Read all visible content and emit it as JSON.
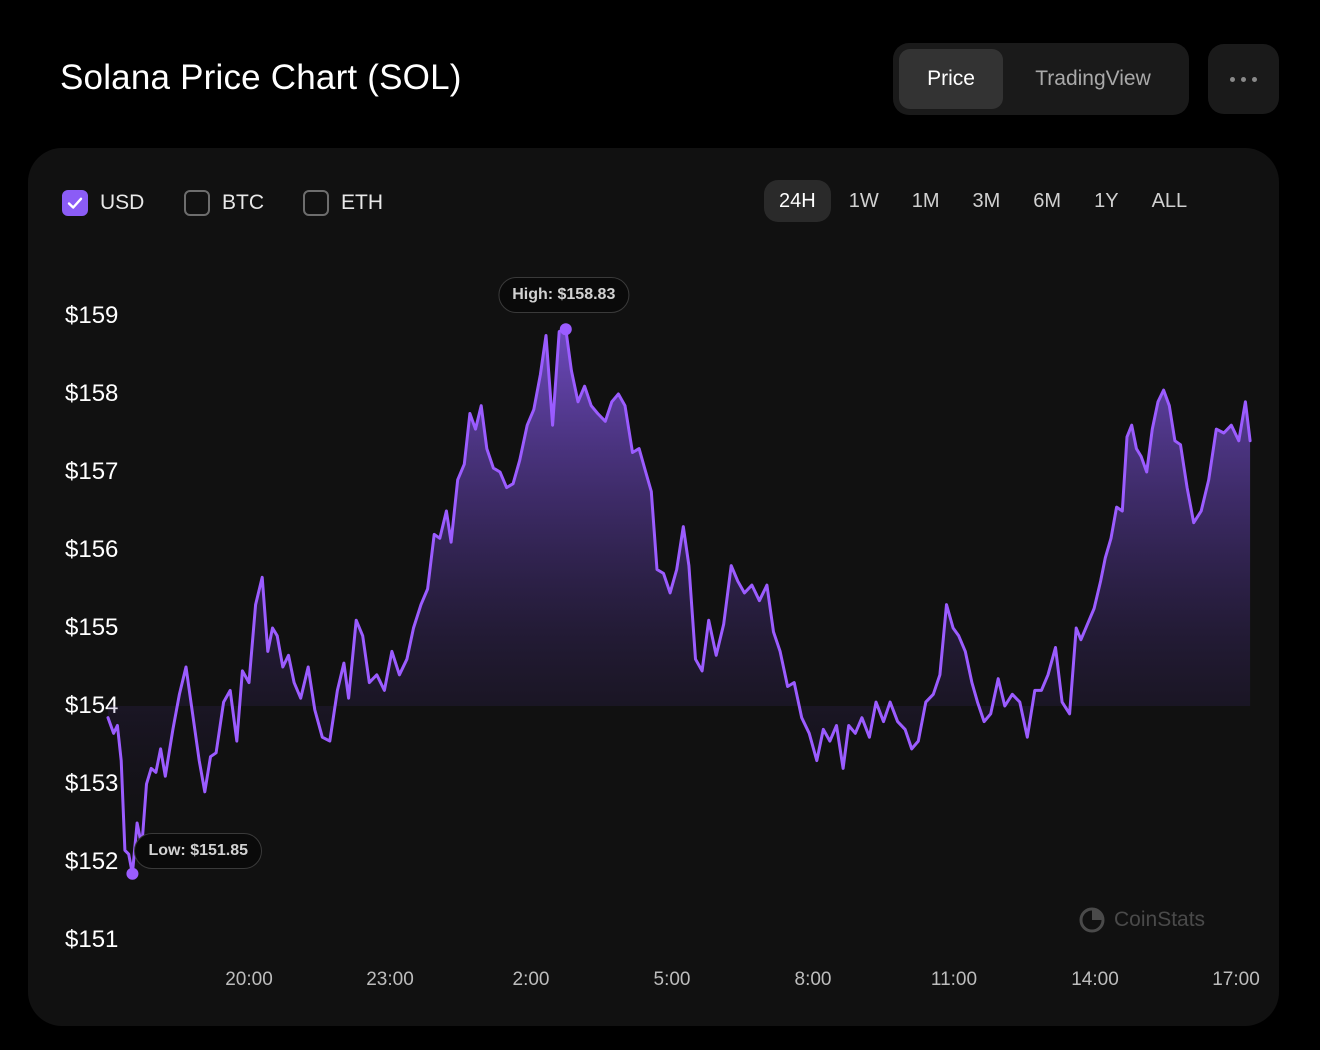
{
  "header": {
    "title": "Solana Price Chart (SOL)",
    "tabs": [
      {
        "label": "Price",
        "active": true
      },
      {
        "label": "TradingView",
        "active": false
      }
    ],
    "more_icon": "more-horizontal-icon"
  },
  "currencies": [
    {
      "label": "USD",
      "checked": true
    },
    {
      "label": "BTC",
      "checked": false
    },
    {
      "label": "ETH",
      "checked": false
    }
  ],
  "ranges": [
    {
      "label": "24H",
      "active": true
    },
    {
      "label": "1W",
      "active": false
    },
    {
      "label": "1M",
      "active": false
    },
    {
      "label": "3M",
      "active": false
    },
    {
      "label": "6M",
      "active": false
    },
    {
      "label": "1Y",
      "active": false
    },
    {
      "label": "ALL",
      "active": false
    }
  ],
  "chart_data": {
    "type": "area",
    "title": "",
    "xlabel": "",
    "ylabel": "",
    "ylim": [
      151,
      159
    ],
    "y_ticks": [
      {
        "value": 159,
        "label": "$159"
      },
      {
        "value": 158,
        "label": "$158"
      },
      {
        "value": 157,
        "label": "$157"
      },
      {
        "value": 156,
        "label": "$156"
      },
      {
        "value": 155,
        "label": "$155"
      },
      {
        "value": 154,
        "label": "$154"
      },
      {
        "value": 153,
        "label": "$153"
      },
      {
        "value": 152,
        "label": "$152"
      },
      {
        "value": 151,
        "label": "$151"
      }
    ],
    "xlim": [
      18.8,
      17.2
    ],
    "x_unit": "hours",
    "x_ticks": [
      {
        "value": 20,
        "label": "20:00"
      },
      {
        "value": 23,
        "label": "23:00"
      },
      {
        "value": 26,
        "label": "2:00"
      },
      {
        "value": 29,
        "label": "5:00"
      },
      {
        "value": 32,
        "label": "8:00"
      },
      {
        "value": 35,
        "label": "11:00"
      },
      {
        "value": 38,
        "label": "14:00"
      },
      {
        "value": 41,
        "label": "17:00"
      }
    ],
    "series": [
      {
        "color": "#9b5cff",
        "points": [
          [
            17.0,
            153.85
          ],
          [
            17.12,
            153.65
          ],
          [
            17.2,
            153.75
          ],
          [
            17.28,
            153.3
          ],
          [
            17.36,
            152.15
          ],
          [
            17.44,
            152.1
          ],
          [
            17.52,
            151.85
          ],
          [
            17.62,
            152.5
          ],
          [
            17.72,
            152.2
          ],
          [
            17.82,
            153.0
          ],
          [
            17.92,
            153.2
          ],
          [
            18.02,
            153.15
          ],
          [
            18.12,
            153.45
          ],
          [
            18.22,
            153.1
          ],
          [
            18.38,
            153.7
          ],
          [
            18.52,
            154.15
          ],
          [
            18.66,
            154.5
          ],
          [
            18.8,
            153.9
          ],
          [
            18.94,
            153.3
          ],
          [
            19.06,
            152.9
          ],
          [
            19.18,
            153.35
          ],
          [
            19.3,
            153.4
          ],
          [
            19.46,
            154.05
          ],
          [
            19.6,
            154.2
          ],
          [
            19.74,
            153.55
          ],
          [
            19.86,
            154.45
          ],
          [
            20.0,
            154.3
          ],
          [
            20.14,
            155.3
          ],
          [
            20.28,
            155.65
          ],
          [
            20.4,
            154.7
          ],
          [
            20.5,
            155.0
          ],
          [
            20.6,
            154.9
          ],
          [
            20.72,
            154.5
          ],
          [
            20.84,
            154.65
          ],
          [
            20.96,
            154.3
          ],
          [
            21.1,
            154.1
          ],
          [
            21.26,
            154.5
          ],
          [
            21.4,
            153.95
          ],
          [
            21.56,
            153.6
          ],
          [
            21.72,
            153.55
          ],
          [
            21.88,
            154.2
          ],
          [
            22.02,
            154.55
          ],
          [
            22.12,
            154.1
          ],
          [
            22.28,
            155.1
          ],
          [
            22.42,
            154.9
          ],
          [
            22.56,
            154.3
          ],
          [
            22.72,
            154.4
          ],
          [
            22.88,
            154.2
          ],
          [
            23.04,
            154.7
          ],
          [
            23.2,
            154.4
          ],
          [
            23.36,
            154.6
          ],
          [
            23.5,
            155.0
          ],
          [
            23.66,
            155.3
          ],
          [
            23.8,
            155.5
          ],
          [
            23.94,
            156.2
          ],
          [
            24.06,
            156.15
          ],
          [
            24.2,
            156.5
          ],
          [
            24.3,
            156.1
          ],
          [
            24.44,
            156.9
          ],
          [
            24.58,
            157.1
          ],
          [
            24.7,
            157.75
          ],
          [
            24.82,
            157.55
          ],
          [
            24.94,
            157.85
          ],
          [
            25.06,
            157.3
          ],
          [
            25.2,
            157.05
          ],
          [
            25.34,
            157.0
          ],
          [
            25.48,
            156.8
          ],
          [
            25.62,
            156.85
          ],
          [
            25.76,
            157.15
          ],
          [
            25.92,
            157.6
          ],
          [
            26.06,
            157.8
          ],
          [
            26.2,
            158.25
          ],
          [
            26.32,
            158.75
          ],
          [
            26.46,
            157.6
          ],
          [
            26.6,
            158.8
          ],
          [
            26.74,
            158.83
          ],
          [
            26.86,
            158.3
          ],
          [
            27.0,
            157.9
          ],
          [
            27.14,
            158.1
          ],
          [
            27.28,
            157.85
          ],
          [
            27.42,
            157.75
          ],
          [
            27.58,
            157.65
          ],
          [
            27.72,
            157.9
          ],
          [
            27.86,
            158.0
          ],
          [
            28.0,
            157.85
          ],
          [
            28.16,
            157.25
          ],
          [
            28.3,
            157.3
          ],
          [
            28.44,
            157.0
          ],
          [
            28.56,
            156.75
          ],
          [
            28.68,
            155.75
          ],
          [
            28.82,
            155.7
          ],
          [
            28.96,
            155.45
          ],
          [
            29.1,
            155.75
          ],
          [
            29.24,
            156.3
          ],
          [
            29.36,
            155.8
          ],
          [
            29.5,
            154.6
          ],
          [
            29.64,
            154.45
          ],
          [
            29.78,
            155.1
          ],
          [
            29.94,
            154.65
          ],
          [
            30.1,
            155.05
          ],
          [
            30.26,
            155.8
          ],
          [
            30.4,
            155.6
          ],
          [
            30.54,
            155.45
          ],
          [
            30.7,
            155.55
          ],
          [
            30.86,
            155.35
          ],
          [
            31.02,
            155.55
          ],
          [
            31.16,
            154.95
          ],
          [
            31.3,
            154.7
          ],
          [
            31.46,
            154.25
          ],
          [
            31.6,
            154.3
          ],
          [
            31.76,
            153.85
          ],
          [
            31.92,
            153.65
          ],
          [
            32.08,
            153.3
          ],
          [
            32.22,
            153.7
          ],
          [
            32.36,
            153.55
          ],
          [
            32.5,
            153.75
          ],
          [
            32.64,
            153.2
          ],
          [
            32.76,
            153.75
          ],
          [
            32.9,
            153.65
          ],
          [
            33.04,
            153.85
          ],
          [
            33.2,
            153.6
          ],
          [
            33.34,
            154.05
          ],
          [
            33.5,
            153.8
          ],
          [
            33.64,
            154.05
          ],
          [
            33.8,
            153.8
          ],
          [
            33.96,
            153.7
          ],
          [
            34.1,
            153.45
          ],
          [
            34.24,
            153.55
          ],
          [
            34.4,
            154.05
          ],
          [
            34.56,
            154.15
          ],
          [
            34.7,
            154.4
          ],
          [
            34.84,
            155.3
          ],
          [
            34.98,
            155.0
          ],
          [
            35.1,
            154.9
          ],
          [
            35.24,
            154.7
          ],
          [
            35.38,
            154.3
          ],
          [
            35.5,
            154.05
          ],
          [
            35.64,
            153.8
          ],
          [
            35.78,
            153.9
          ],
          [
            35.94,
            154.35
          ],
          [
            36.08,
            154.0
          ],
          [
            36.24,
            154.15
          ],
          [
            36.4,
            154.05
          ],
          [
            36.56,
            153.6
          ],
          [
            36.72,
            154.2
          ],
          [
            36.86,
            154.2
          ],
          [
            37.0,
            154.4
          ],
          [
            37.16,
            154.75
          ],
          [
            37.3,
            154.05
          ],
          [
            37.46,
            153.9
          ],
          [
            37.6,
            155.0
          ],
          [
            37.7,
            154.85
          ],
          [
            37.84,
            155.05
          ],
          [
            37.98,
            155.25
          ],
          [
            38.12,
            155.6
          ],
          [
            38.22,
            155.9
          ],
          [
            38.34,
            156.15
          ],
          [
            38.46,
            156.55
          ],
          [
            38.58,
            156.5
          ],
          [
            38.68,
            157.45
          ],
          [
            38.78,
            157.6
          ],
          [
            38.88,
            157.3
          ],
          [
            38.98,
            157.2
          ],
          [
            39.1,
            157.0
          ],
          [
            39.22,
            157.55
          ],
          [
            39.34,
            157.9
          ],
          [
            39.46,
            158.05
          ],
          [
            39.58,
            157.85
          ],
          [
            39.7,
            157.4
          ],
          [
            39.82,
            157.35
          ],
          [
            39.96,
            156.8
          ],
          [
            40.1,
            156.35
          ],
          [
            40.26,
            156.5
          ],
          [
            40.42,
            156.9
          ],
          [
            40.58,
            157.55
          ],
          [
            40.74,
            157.5
          ],
          [
            40.9,
            157.6
          ],
          [
            41.06,
            157.4
          ],
          [
            41.2,
            157.9
          ],
          [
            41.3,
            157.4
          ]
        ]
      }
    ],
    "annotations": [
      {
        "label": "High: $158.83",
        "x": 26.74,
        "y": 158.83
      },
      {
        "label": "Low: $151.85",
        "x": 17.52,
        "y": 151.85
      }
    ]
  },
  "watermark": "CoinStats"
}
